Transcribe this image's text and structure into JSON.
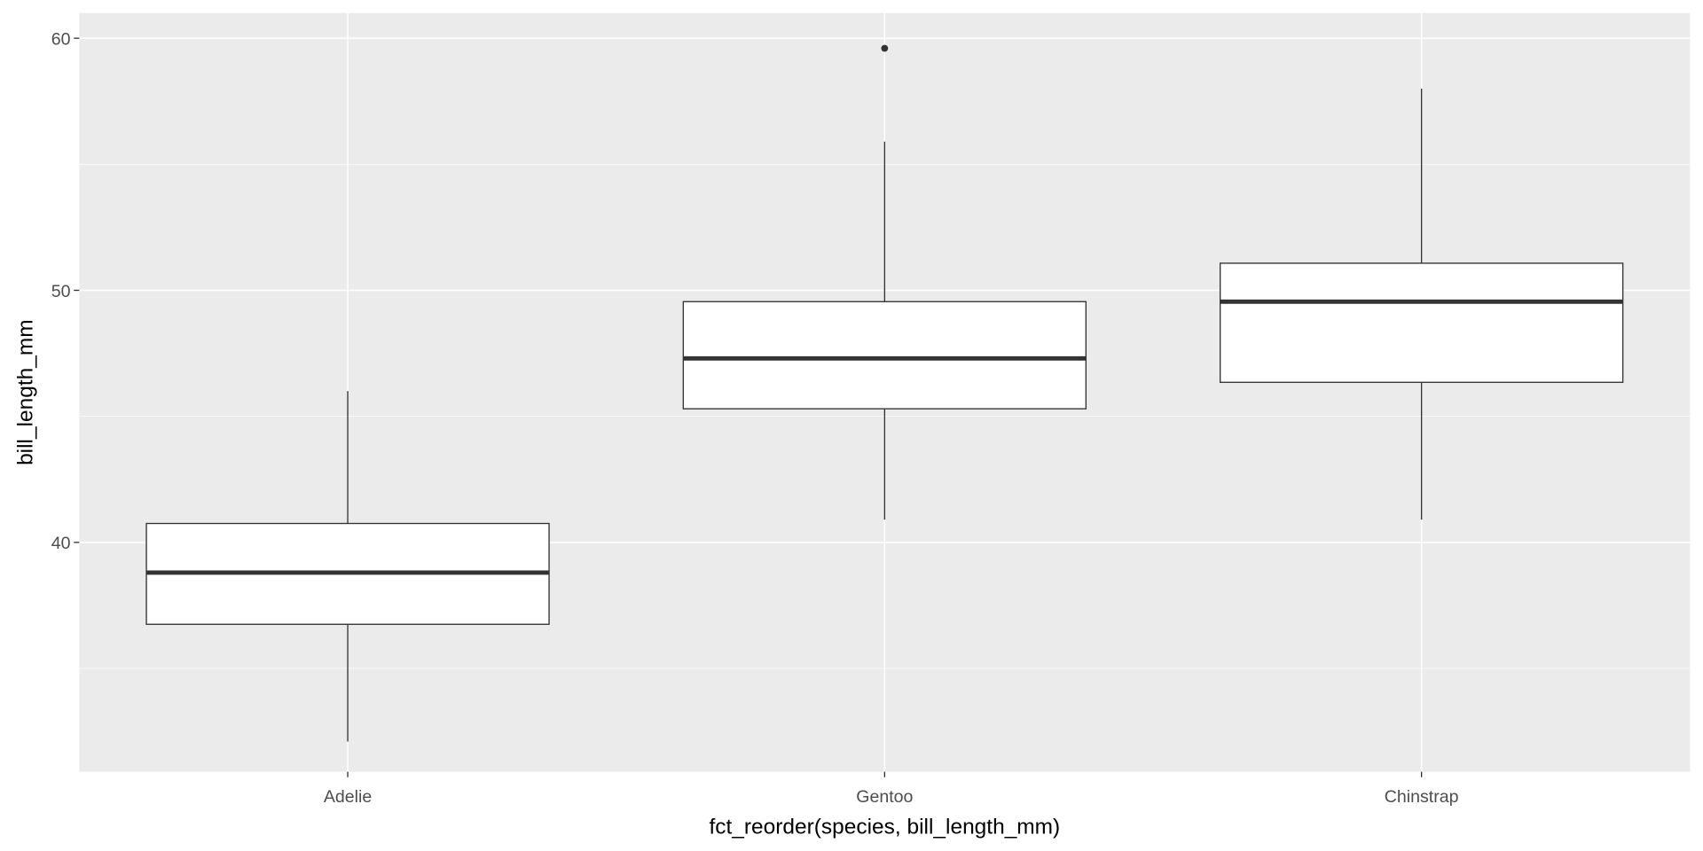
{
  "chart_data": {
    "type": "boxplot",
    "title": "",
    "xlabel": "fct_reorder(species, bill_length_mm)",
    "ylabel": "bill_length_mm",
    "categories": [
      "Adelie",
      "Gentoo",
      "Chinstrap"
    ],
    "boxes": [
      {
        "category": "Adelie",
        "whisker_low": 32.1,
        "q1": 36.75,
        "median": 38.8,
        "q3": 40.75,
        "whisker_high": 46.0,
        "outliers": []
      },
      {
        "category": "Gentoo",
        "whisker_low": 40.9,
        "q1": 45.3,
        "median": 47.3,
        "q3": 49.55,
        "whisker_high": 55.9,
        "outliers": [
          59.6
        ]
      },
      {
        "category": "Chinstrap",
        "whisker_low": 40.9,
        "q1": 46.35,
        "median": 49.55,
        "q3": 51.075,
        "whisker_high": 58.0,
        "outliers": []
      }
    ],
    "y_ticks": [
      40,
      50,
      60
    ],
    "ylim": [
      30.9,
      61.0
    ],
    "grid": true,
    "colors": {
      "panel": "#EBEBEB",
      "grid": "#FFFFFF",
      "box_fill": "#FFFFFF",
      "box_line": "#333333",
      "tick_text": "#4D4D4D"
    }
  }
}
